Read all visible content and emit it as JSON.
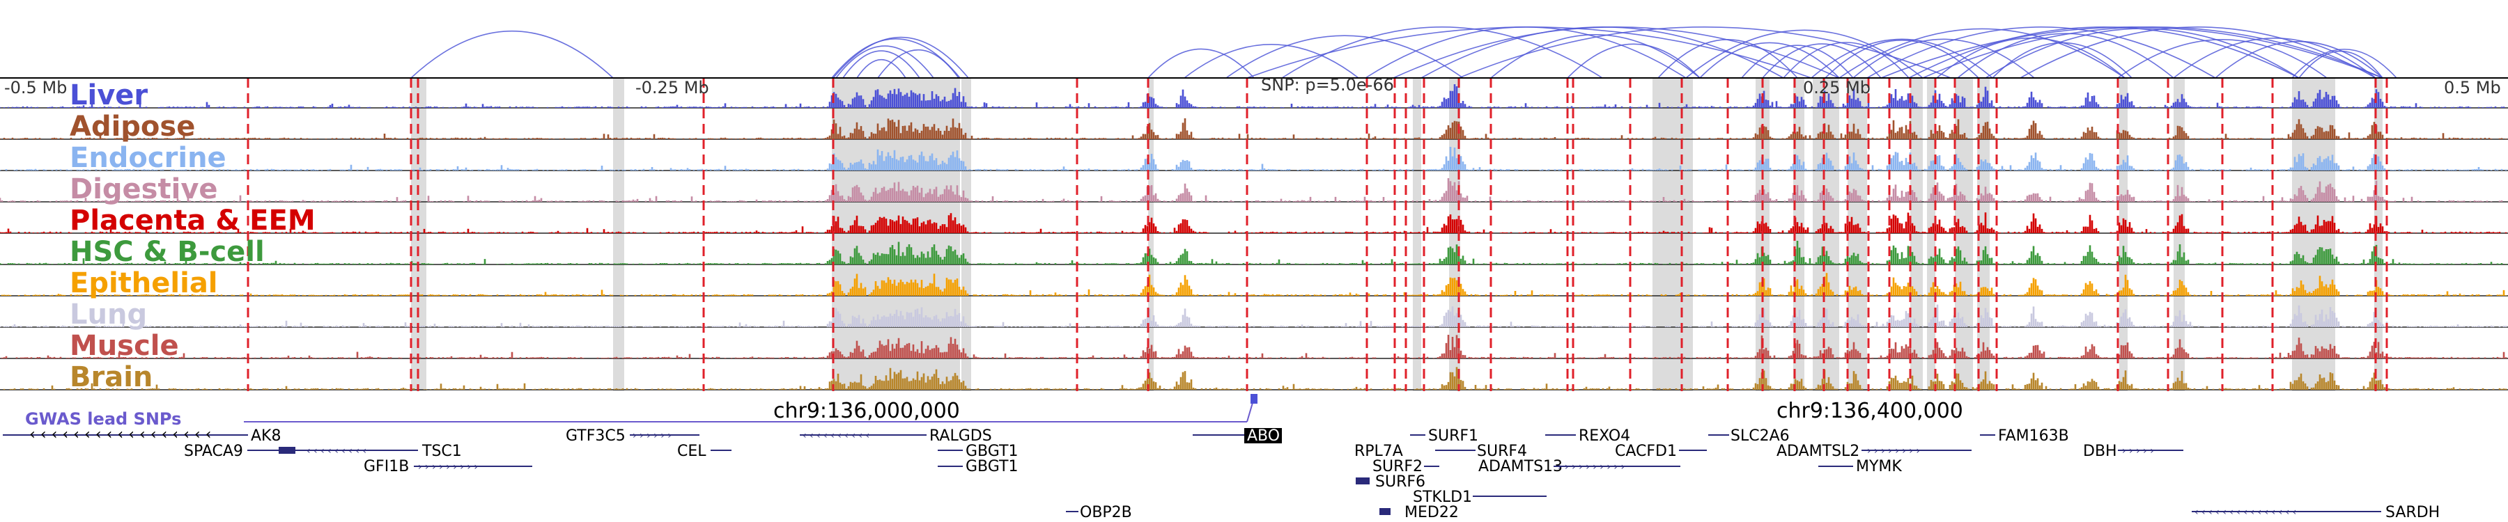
{
  "axis": {
    "left_label": "-0.5 Mb",
    "mid_left_label": "-0.25 Mb",
    "snp_label": "SNP: p=5.0e-66",
    "mid_right_label": "0.25 Mb",
    "right_label": "0.5 Mb"
  },
  "tracks": [
    {
      "name": "Liver",
      "color": "#4b50d6"
    },
    {
      "name": "Adipose",
      "color": "#a0522d"
    },
    {
      "name": "Endocrine",
      "color": "#8ab4f0"
    },
    {
      "name": "Digestive",
      "color": "#c58ca5"
    },
    {
      "name": "Placenta & EEM",
      "color": "#d40000"
    },
    {
      "name": "HSC & B-cell",
      "color": "#3d9a3d"
    },
    {
      "name": "Epithelial",
      "color": "#f5a000"
    },
    {
      "name": "Lung",
      "color": "#c9c9df"
    },
    {
      "name": "Muscle",
      "color": "#c0504d"
    },
    {
      "name": "Brain",
      "color": "#b8862b"
    }
  ],
  "coords": {
    "left": "chr9:136,000,000",
    "right": "chr9:136,400,000"
  },
  "gwas_label": "GWAS lead SNPs",
  "genes": [
    {
      "name": "AK8"
    },
    {
      "name": "SPACA9"
    },
    {
      "name": "TSC1"
    },
    {
      "name": "GFI1B"
    },
    {
      "name": "GTF3C5"
    },
    {
      "name": "CEL"
    },
    {
      "name": "RALGDS"
    },
    {
      "name": "GBGT1"
    },
    {
      "name": "GBGT1"
    },
    {
      "name": "OBP2B"
    },
    {
      "name": "ABO"
    },
    {
      "name": "RPL7A"
    },
    {
      "name": "SURF1"
    },
    {
      "name": "SURF2"
    },
    {
      "name": "SURF4"
    },
    {
      "name": "SURF6"
    },
    {
      "name": "STKLD1"
    },
    {
      "name": "MED22"
    },
    {
      "name": "REXO4"
    },
    {
      "name": "ADAMTS13"
    },
    {
      "name": "CACFD1"
    },
    {
      "name": "SLC2A6"
    },
    {
      "name": "ADAMTSL2"
    },
    {
      "name": "MYMK"
    },
    {
      "name": "FAM163B"
    },
    {
      "name": "DBH"
    },
    {
      "name": "SARDH"
    }
  ],
  "colors": {
    "loops": "#5058d8",
    "highlight_line": "#e0202a",
    "peak_band": "#dcdcdc",
    "gene": "#2a2a7a",
    "gwas": "#6a5acd"
  }
}
